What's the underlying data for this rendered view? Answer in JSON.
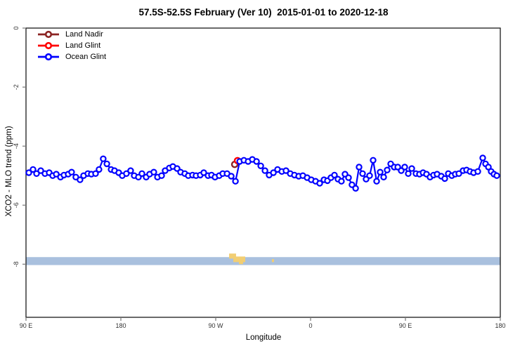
{
  "title": "57.5S-52.5S February (Ver 10)  2015-01-01 to 2020-12-18",
  "colors": {
    "land_nadir": "#8B2423",
    "land_glint": "#FF0000",
    "ocean_glint": "#0000FF",
    "band_ocean": "#A9C0DE",
    "band_land": "#F2CE73",
    "box": "#1a1a1a",
    "tick": "#777777",
    "tick_label": "#333333"
  },
  "legend": {
    "items": [
      {
        "label": "Land Nadir",
        "color": "#8B2423"
      },
      {
        "label": "Land Glint",
        "color": "#FF0000"
      },
      {
        "label": "Ocean Glint",
        "color": "#0000FF"
      }
    ]
  },
  "chart_data": {
    "type": "line",
    "title": "57.5S-52.5S February (Ver 10)  2015-01-01 to 2020-12-18",
    "xlabel": "Longitude",
    "ylabel": "XCO2 - MLO trend (ppm)",
    "x_axis": {
      "note": "x values are degrees east of 90E along a wrapped longitude axis",
      "range_deg": [
        0,
        450
      ],
      "ticks_deg": [
        0,
        90,
        180,
        270,
        360,
        450
      ],
      "tick_labels": [
        "90 E",
        "180",
        "90 W",
        "0",
        "90 E",
        "180"
      ]
    },
    "y_axis": {
      "range": [
        0,
        -9.8
      ],
      "ticks": [
        0,
        -2,
        -4,
        -6,
        -8
      ],
      "tick_labels": [
        "0",
        "-2",
        "-4",
        "-6",
        "-8"
      ]
    },
    "grid": false,
    "legend_position": "top-left",
    "series": [
      {
        "name": "Land Nadir",
        "color": "#8B2423",
        "points": [
          [
            198,
            -4.62
          ]
        ]
      },
      {
        "name": "Land Glint",
        "color": "#FF0000",
        "points": [
          [
            200.7,
            -4.49
          ]
        ]
      },
      {
        "name": "Ocean Glint",
        "color": "#0000FF",
        "points": [
          [
            2.7,
            -4.9
          ],
          [
            6.7,
            -4.79
          ],
          [
            10,
            -4.93
          ],
          [
            14,
            -4.83
          ],
          [
            18,
            -4.93
          ],
          [
            22,
            -4.9
          ],
          [
            25.3,
            -5.0
          ],
          [
            28.7,
            -4.95
          ],
          [
            32.7,
            -5.05
          ],
          [
            36,
            -4.98
          ],
          [
            40,
            -4.95
          ],
          [
            43.3,
            -4.88
          ],
          [
            47.3,
            -5.05
          ],
          [
            51.3,
            -5.14
          ],
          [
            54.7,
            -5.0
          ],
          [
            58.7,
            -4.93
          ],
          [
            62,
            -4.95
          ],
          [
            66,
            -4.93
          ],
          [
            69.3,
            -4.79
          ],
          [
            73.3,
            -4.43
          ],
          [
            76.7,
            -4.6
          ],
          [
            80.7,
            -4.79
          ],
          [
            84,
            -4.83
          ],
          [
            88,
            -4.9
          ],
          [
            91.3,
            -5.0
          ],
          [
            95.3,
            -4.93
          ],
          [
            99.3,
            -4.83
          ],
          [
            102.7,
            -5.0
          ],
          [
            106.7,
            -5.05
          ],
          [
            110,
            -4.93
          ],
          [
            114,
            -5.05
          ],
          [
            117.3,
            -4.95
          ],
          [
            121.3,
            -4.88
          ],
          [
            124.7,
            -5.05
          ],
          [
            128.7,
            -5.0
          ],
          [
            132,
            -4.83
          ],
          [
            136,
            -4.74
          ],
          [
            139.3,
            -4.69
          ],
          [
            143.3,
            -4.76
          ],
          [
            146.7,
            -4.88
          ],
          [
            150.7,
            -4.93
          ],
          [
            154,
            -5.0
          ],
          [
            158,
            -4.98
          ],
          [
            161.3,
            -5.0
          ],
          [
            165.3,
            -4.98
          ],
          [
            168.7,
            -4.9
          ],
          [
            172.7,
            -5.0
          ],
          [
            176,
            -4.98
          ],
          [
            179.3,
            -5.05
          ],
          [
            183.3,
            -5.0
          ],
          [
            186.7,
            -4.93
          ],
          [
            190.7,
            -4.93
          ],
          [
            194.7,
            -5.02
          ],
          [
            198.7,
            -5.19
          ],
          [
            202.7,
            -4.52
          ],
          [
            206.7,
            -4.48
          ],
          [
            210.7,
            -4.52
          ],
          [
            214.7,
            -4.45
          ],
          [
            218.7,
            -4.52
          ],
          [
            222.7,
            -4.67
          ],
          [
            226.7,
            -4.83
          ],
          [
            230.7,
            -4.98
          ],
          [
            234.7,
            -4.9
          ],
          [
            238.7,
            -4.79
          ],
          [
            242.7,
            -4.86
          ],
          [
            246.7,
            -4.83
          ],
          [
            250.7,
            -4.93
          ],
          [
            254.7,
            -4.98
          ],
          [
            258.7,
            -5.02
          ],
          [
            262.7,
            -5.0
          ],
          [
            266.7,
            -5.07
          ],
          [
            270.7,
            -5.14
          ],
          [
            274.7,
            -5.19
          ],
          [
            278.7,
            -5.26
          ],
          [
            282.7,
            -5.14
          ],
          [
            286,
            -5.17
          ],
          [
            289.3,
            -5.07
          ],
          [
            292.7,
            -4.98
          ],
          [
            296,
            -5.12
          ],
          [
            299.3,
            -5.19
          ],
          [
            302.7,
            -4.95
          ],
          [
            306,
            -5.07
          ],
          [
            309.3,
            -5.31
          ],
          [
            312.7,
            -5.43
          ],
          [
            316,
            -4.71
          ],
          [
            319.3,
            -4.93
          ],
          [
            322.7,
            -5.12
          ],
          [
            326,
            -5.0
          ],
          [
            329.3,
            -4.48
          ],
          [
            332.7,
            -5.19
          ],
          [
            336,
            -4.88
          ],
          [
            339.3,
            -5.05
          ],
          [
            342.7,
            -4.81
          ],
          [
            346,
            -4.6
          ],
          [
            349.3,
            -4.71
          ],
          [
            352.7,
            -4.71
          ],
          [
            356,
            -4.83
          ],
          [
            359.3,
            -4.71
          ],
          [
            362.7,
            -4.93
          ],
          [
            366,
            -4.76
          ],
          [
            370,
            -4.93
          ],
          [
            373.3,
            -4.95
          ],
          [
            376.7,
            -4.9
          ],
          [
            380,
            -4.95
          ],
          [
            383.3,
            -5.05
          ],
          [
            386.7,
            -4.98
          ],
          [
            390,
            -4.95
          ],
          [
            394,
            -5.02
          ],
          [
            397.3,
            -5.1
          ],
          [
            400.7,
            -4.93
          ],
          [
            404,
            -5.0
          ],
          [
            407.3,
            -4.95
          ],
          [
            410.7,
            -4.93
          ],
          [
            414.7,
            -4.83
          ],
          [
            418,
            -4.81
          ],
          [
            421.3,
            -4.86
          ],
          [
            424.7,
            -4.9
          ],
          [
            428.7,
            -4.86
          ],
          [
            433.3,
            -4.4
          ],
          [
            436,
            -4.6
          ],
          [
            438.7,
            -4.71
          ],
          [
            441.3,
            -4.86
          ],
          [
            444,
            -4.95
          ],
          [
            446.7,
            -5.0
          ]
        ]
      }
    ],
    "map_band": {
      "description": "latitude-band strip map across full width",
      "v_top": -7.76,
      "v_bottom": -8.03,
      "ocean_color": "#A9C0DE",
      "land_color": "#F2CE73",
      "land_patches": [
        [
          192.7,
          199.3,
          -7.64,
          -7.81
        ],
        [
          196.7,
          208.0,
          -7.74,
          -7.93
        ],
        [
          202.0,
          206.0,
          -7.9,
          -8.0
        ],
        [
          233.3,
          235.3,
          -7.83,
          -7.93
        ]
      ]
    }
  }
}
